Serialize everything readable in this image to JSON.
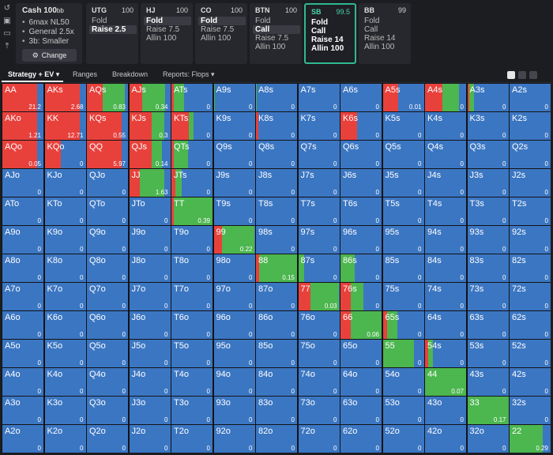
{
  "colors": {
    "raise": "#e8413c",
    "call": "#4cb64f",
    "fold": "#3b76c2",
    "accent": "#2fb98f"
  },
  "game": {
    "title": "Cash",
    "stack": "100",
    "stack_unit": "bb",
    "lines": [
      "6max NL50",
      "General 2.5x",
      "3b: Smaller"
    ],
    "change_label": "Change"
  },
  "left_icons": [
    "undo-icon",
    "save-icon",
    "gamepad-icon",
    "upload-icon"
  ],
  "positions": [
    {
      "name": "UTG",
      "stack": "100",
      "actions": [
        "Fold",
        "Raise 2.5"
      ],
      "selected": 1,
      "active": false
    },
    {
      "name": "HJ",
      "stack": "100",
      "actions": [
        "Fold",
        "Raise 7.5",
        "Allin 100"
      ],
      "selected": 0,
      "active": false
    },
    {
      "name": "CO",
      "stack": "100",
      "actions": [
        "Fold",
        "Raise 7.5",
        "Allin 100"
      ],
      "selected": 0,
      "active": false
    },
    {
      "name": "BTN",
      "stack": "100",
      "actions": [
        "Fold",
        "Call",
        "Raise 7.5",
        "Allin 100"
      ],
      "selected": 1,
      "active": false
    },
    {
      "name": "SB",
      "stack": "99.5",
      "actions": [
        "Fold",
        "Call",
        "Raise 14",
        "Allin 100"
      ],
      "selected": -1,
      "active": true
    },
    {
      "name": "BB",
      "stack": "99",
      "actions": [
        "Fold",
        "Call",
        "Raise 14",
        "Allin 100"
      ],
      "selected": -1,
      "active": false
    }
  ],
  "tabs": [
    "Strategy + EV",
    "Ranges",
    "Breakdown",
    "Reports: Flops"
  ],
  "ranks": [
    "A",
    "K",
    "Q",
    "J",
    "T",
    "9",
    "8",
    "7",
    "6",
    "5",
    "4",
    "3",
    "2"
  ],
  "grid": [
    [
      [
        0.85,
        0,
        "21.2"
      ],
      [
        0.85,
        0,
        "2.68"
      ],
      [
        0.38,
        0.55,
        "0.83"
      ],
      [
        0.32,
        0.55,
        "0.34"
      ],
      [
        0.05,
        0.25,
        "0"
      ],
      [
        0,
        0.02,
        "0"
      ],
      [
        0,
        0.02,
        "0"
      ],
      [
        0,
        0,
        "0"
      ],
      [
        0,
        0,
        "0"
      ],
      [
        0.38,
        0,
        "0.01"
      ],
      [
        0.42,
        0.4,
        "0"
      ],
      [
        0.05,
        0.12,
        "0"
      ],
      [
        0,
        0,
        "0"
      ]
    ],
    [
      [
        0.85,
        0,
        "1.21"
      ],
      [
        0.85,
        0,
        "12.71"
      ],
      [
        0.85,
        0,
        "0.55"
      ],
      [
        0.55,
        0.3,
        "0.3"
      ],
      [
        0.42,
        0.12,
        "0"
      ],
      [
        0,
        0,
        "0"
      ],
      [
        0.05,
        0,
        "0"
      ],
      [
        0,
        0,
        "0"
      ],
      [
        0.4,
        0,
        "0"
      ],
      [
        0,
        0,
        "0"
      ],
      [
        0,
        0,
        "0"
      ],
      [
        0,
        0,
        "0"
      ],
      [
        0,
        0,
        "0"
      ]
    ],
    [
      [
        0.85,
        0,
        "0.05"
      ],
      [
        0.4,
        0,
        "0"
      ],
      [
        0.85,
        0,
        "5.97"
      ],
      [
        0.55,
        0.25,
        "0.14"
      ],
      [
        0.05,
        0.35,
        "0"
      ],
      [
        0,
        0,
        "0"
      ],
      [
        0,
        0,
        "0"
      ],
      [
        0,
        0,
        "0"
      ],
      [
        0,
        0,
        "0"
      ],
      [
        0,
        0,
        "0"
      ],
      [
        0,
        0,
        "0"
      ],
      [
        0,
        0,
        "0"
      ],
      [
        0,
        0,
        "0"
      ]
    ],
    [
      [
        0,
        0,
        "0"
      ],
      [
        0,
        0,
        "0"
      ],
      [
        0,
        0,
        "0"
      ],
      [
        0.25,
        0.6,
        "1.63"
      ],
      [
        0.1,
        0.15,
        "0"
      ],
      [
        0,
        0,
        "0"
      ],
      [
        0,
        0,
        "0"
      ],
      [
        0,
        0,
        "0"
      ],
      [
        0,
        0,
        "0"
      ],
      [
        0,
        0,
        "0"
      ],
      [
        0,
        0,
        "0"
      ],
      [
        0,
        0,
        "0"
      ],
      [
        0,
        0,
        "0"
      ]
    ],
    [
      [
        0,
        0,
        "0"
      ],
      [
        0,
        0,
        "0"
      ],
      [
        0,
        0,
        "0"
      ],
      [
        0,
        0,
        "0"
      ],
      [
        0.05,
        0.95,
        "0.39"
      ],
      [
        0,
        0,
        "0"
      ],
      [
        0,
        0,
        "0"
      ],
      [
        0,
        0,
        "0"
      ],
      [
        0,
        0,
        "0"
      ],
      [
        0,
        0,
        "0"
      ],
      [
        0,
        0,
        "0"
      ],
      [
        0,
        0,
        "0"
      ],
      [
        0,
        0,
        "0"
      ]
    ],
    [
      [
        0,
        0,
        "0"
      ],
      [
        0,
        0,
        "0"
      ],
      [
        0,
        0,
        "0"
      ],
      [
        0,
        0,
        "0"
      ],
      [
        0,
        0,
        "0"
      ],
      [
        0.2,
        0.8,
        "0.22"
      ],
      [
        0,
        0,
        "0"
      ],
      [
        0,
        0,
        "0"
      ],
      [
        0,
        0,
        "0"
      ],
      [
        0,
        0,
        "0"
      ],
      [
        0,
        0,
        "0"
      ],
      [
        0,
        0,
        "0"
      ],
      [
        0,
        0,
        "0"
      ]
    ],
    [
      [
        0,
        0,
        "0"
      ],
      [
        0,
        0,
        "0"
      ],
      [
        0,
        0,
        "0"
      ],
      [
        0,
        0,
        "0"
      ],
      [
        0,
        0,
        "0"
      ],
      [
        0,
        0,
        "0"
      ],
      [
        0.08,
        0.92,
        "0.15"
      ],
      [
        0,
        0.15,
        "0"
      ],
      [
        0,
        0.35,
        "0"
      ],
      [
        0,
        0,
        "0"
      ],
      [
        0,
        0,
        "0"
      ],
      [
        0,
        0,
        "0"
      ],
      [
        0,
        0,
        "0"
      ]
    ],
    [
      [
        0,
        0,
        "0"
      ],
      [
        0,
        0,
        "0"
      ],
      [
        0,
        0,
        "0"
      ],
      [
        0,
        0,
        "0"
      ],
      [
        0,
        0,
        "0"
      ],
      [
        0,
        0,
        "0"
      ],
      [
        0,
        0,
        "0"
      ],
      [
        0.3,
        0.7,
        "0.03"
      ],
      [
        0.25,
        0.3,
        "0"
      ],
      [
        0,
        0,
        "0"
      ],
      [
        0,
        0,
        "0"
      ],
      [
        0,
        0,
        "0"
      ],
      [
        0,
        0,
        "0"
      ]
    ],
    [
      [
        0,
        0,
        "0"
      ],
      [
        0,
        0,
        "0"
      ],
      [
        0,
        0,
        "0"
      ],
      [
        0,
        0,
        "0"
      ],
      [
        0,
        0,
        "0"
      ],
      [
        0,
        0,
        "0"
      ],
      [
        0,
        0,
        "0"
      ],
      [
        0,
        0,
        "0"
      ],
      [
        0.25,
        0.75,
        "0.06"
      ],
      [
        0.1,
        0.25,
        "0"
      ],
      [
        0,
        0,
        "0"
      ],
      [
        0,
        0,
        "0"
      ],
      [
        0,
        0,
        "0"
      ]
    ],
    [
      [
        0,
        0,
        "0"
      ],
      [
        0,
        0,
        "0"
      ],
      [
        0,
        0,
        "0"
      ],
      [
        0,
        0,
        "0"
      ],
      [
        0,
        0,
        "0"
      ],
      [
        0,
        0,
        "0"
      ],
      [
        0,
        0,
        "0"
      ],
      [
        0,
        0,
        "0"
      ],
      [
        0,
        0,
        "0"
      ],
      [
        0,
        0.75,
        "0"
      ],
      [
        0.08,
        0.12,
        "0"
      ],
      [
        0,
        0,
        "0"
      ],
      [
        0,
        0,
        "0"
      ]
    ],
    [
      [
        0,
        0,
        "0"
      ],
      [
        0,
        0,
        "0"
      ],
      [
        0,
        0,
        "0"
      ],
      [
        0,
        0,
        "0"
      ],
      [
        0,
        0,
        "0"
      ],
      [
        0,
        0,
        "0"
      ],
      [
        0,
        0,
        "0"
      ],
      [
        0,
        0,
        "0"
      ],
      [
        0,
        0,
        "0"
      ],
      [
        0,
        0,
        "0"
      ],
      [
        0,
        1,
        "0.07"
      ],
      [
        0,
        0,
        "0"
      ],
      [
        0,
        0,
        "0"
      ]
    ],
    [
      [
        0,
        0,
        "0"
      ],
      [
        0,
        0,
        "0"
      ],
      [
        0,
        0,
        "0"
      ],
      [
        0,
        0,
        "0"
      ],
      [
        0,
        0,
        "0"
      ],
      [
        0,
        0,
        "0"
      ],
      [
        0,
        0,
        "0"
      ],
      [
        0,
        0,
        "0"
      ],
      [
        0,
        0,
        "0"
      ],
      [
        0,
        0,
        "0"
      ],
      [
        0,
        0,
        "0"
      ],
      [
        0,
        1,
        "0.17"
      ],
      [
        0,
        0,
        "0"
      ]
    ],
    [
      [
        0,
        0,
        "0"
      ],
      [
        0,
        0,
        "0"
      ],
      [
        0,
        0,
        "0"
      ],
      [
        0,
        0,
        "0"
      ],
      [
        0,
        0,
        "0"
      ],
      [
        0,
        0,
        "0"
      ],
      [
        0,
        0,
        "0"
      ],
      [
        0,
        0,
        "0"
      ],
      [
        0,
        0,
        "0"
      ],
      [
        0,
        0,
        "0"
      ],
      [
        0,
        0,
        "0"
      ],
      [
        0,
        0,
        "0"
      ],
      [
        0,
        0.8,
        "0.29"
      ]
    ]
  ]
}
